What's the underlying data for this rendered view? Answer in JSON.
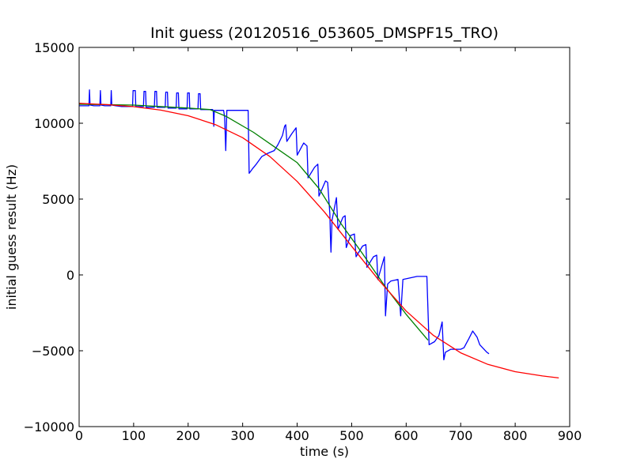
{
  "chart_data": {
    "type": "line",
    "title": "Init guess (20120516_053605_DMSPF15_TRO)",
    "xlabel": "time (s)",
    "ylabel": "initial guess result (Hz)",
    "xlim": [
      0,
      900
    ],
    "ylim": [
      -10000,
      15000
    ],
    "x_ticks": [
      0,
      100,
      200,
      300,
      400,
      500,
      600,
      700,
      800,
      900
    ],
    "y_ticks": [
      -10000,
      -5000,
      0,
      5000,
      10000,
      15000
    ],
    "x_tick_labels": [
      "0",
      "100",
      "200",
      "300",
      "400",
      "500",
      "600",
      "700",
      "800",
      "900"
    ],
    "y_tick_labels": [
      "−10000",
      "−5000",
      "0",
      "5000",
      "10000",
      "15000"
    ],
    "grid": false,
    "legend": "none",
    "series": [
      {
        "color": "#0000ff",
        "points": [
          [
            0,
            11150
          ],
          [
            18,
            11150
          ],
          [
            19,
            12200
          ],
          [
            20,
            11200
          ],
          [
            27,
            11150
          ],
          [
            38,
            11150
          ],
          [
            39,
            12150
          ],
          [
            40,
            11200
          ],
          [
            47,
            11150
          ],
          [
            58,
            11150
          ],
          [
            59,
            12150
          ],
          [
            60,
            11200
          ],
          [
            67,
            11150
          ],
          [
            78,
            11100
          ],
          [
            98,
            11100
          ],
          [
            99,
            12150
          ],
          [
            103,
            12150
          ],
          [
            104,
            11100
          ],
          [
            118,
            11100
          ],
          [
            119,
            12100
          ],
          [
            122,
            12100
          ],
          [
            123,
            11050
          ],
          [
            138,
            11050
          ],
          [
            139,
            12100
          ],
          [
            142,
            12100
          ],
          [
            143,
            11050
          ],
          [
            158,
            11050
          ],
          [
            159,
            12050
          ],
          [
            162,
            12050
          ],
          [
            163,
            11000
          ],
          [
            178,
            11000
          ],
          [
            179,
            12000
          ],
          [
            182,
            12000
          ],
          [
            183,
            10950
          ],
          [
            198,
            10950
          ],
          [
            199,
            12000
          ],
          [
            202,
            12000
          ],
          [
            203,
            10950
          ],
          [
            218,
            10950
          ],
          [
            219,
            11950
          ],
          [
            222,
            11950
          ],
          [
            223,
            10900
          ],
          [
            245,
            10900
          ],
          [
            246,
            10800
          ],
          [
            247,
            9800
          ],
          [
            248,
            10850
          ],
          [
            265,
            10850
          ],
          [
            267,
            10400
          ],
          [
            269,
            8200
          ],
          [
            271,
            10850
          ],
          [
            310,
            10850
          ],
          [
            312,
            6700
          ],
          [
            318,
            7000
          ],
          [
            325,
            7300
          ],
          [
            335,
            7800
          ],
          [
            345,
            8000
          ],
          [
            358,
            8200
          ],
          [
            365,
            8600
          ],
          [
            373,
            9200
          ],
          [
            377,
            9800
          ],
          [
            379,
            9900
          ],
          [
            381,
            8800
          ],
          [
            390,
            9300
          ],
          [
            398,
            9700
          ],
          [
            400,
            7900
          ],
          [
            412,
            8700
          ],
          [
            418,
            8500
          ],
          [
            420,
            6400
          ],
          [
            432,
            7100
          ],
          [
            438,
            7300
          ],
          [
            440,
            5200
          ],
          [
            452,
            6200
          ],
          [
            456,
            6100
          ],
          [
            460,
            4000
          ],
          [
            461,
            2500
          ],
          [
            462,
            1500
          ],
          [
            464,
            3600
          ],
          [
            472,
            5100
          ],
          [
            475,
            3000
          ],
          [
            484,
            3800
          ],
          [
            488,
            3900
          ],
          [
            490,
            1800
          ],
          [
            498,
            2600
          ],
          [
            505,
            2700
          ],
          [
            508,
            1200
          ],
          [
            520,
            1900
          ],
          [
            526,
            2000
          ],
          [
            528,
            500
          ],
          [
            540,
            1200
          ],
          [
            546,
            1300
          ],
          [
            548,
            -300
          ],
          [
            560,
            1200
          ],
          [
            562,
            -2700
          ],
          [
            566,
            -600
          ],
          [
            572,
            -400
          ],
          [
            585,
            -300
          ],
          [
            590,
            -2700
          ],
          [
            594,
            -300
          ],
          [
            620,
            -100
          ],
          [
            638,
            -100
          ],
          [
            642,
            -4600
          ],
          [
            652,
            -4400
          ],
          [
            660,
            -4000
          ],
          [
            666,
            -3100
          ],
          [
            669,
            -5600
          ],
          [
            672,
            -5100
          ],
          [
            682,
            -4900
          ],
          [
            700,
            -4900
          ],
          [
            706,
            -4800
          ],
          [
            715,
            -4200
          ],
          [
            722,
            -3700
          ],
          [
            730,
            -4100
          ],
          [
            735,
            -4600
          ],
          [
            748,
            -5100
          ],
          [
            752,
            -5200
          ]
        ]
      },
      {
        "color": "#008000",
        "points": [
          [
            0,
            11250
          ],
          [
            100,
            11200
          ],
          [
            200,
            11000
          ],
          [
            240,
            10900
          ],
          [
            270,
            10450
          ],
          [
            320,
            9400
          ],
          [
            360,
            8400
          ],
          [
            400,
            7400
          ],
          [
            440,
            5700
          ],
          [
            480,
            3400
          ],
          [
            520,
            1400
          ],
          [
            560,
            -700
          ],
          [
            600,
            -2600
          ],
          [
            640,
            -4300
          ]
        ]
      },
      {
        "color": "#ff0000",
        "points": [
          [
            0,
            11310
          ],
          [
            50,
            11228
          ],
          [
            100,
            11096
          ],
          [
            150,
            10865
          ],
          [
            200,
            10496
          ],
          [
            250,
            9913
          ],
          [
            300,
            9046
          ],
          [
            350,
            7802
          ],
          [
            400,
            6162
          ],
          [
            450,
            4149
          ],
          [
            500,
            1893
          ],
          [
            550,
            -354
          ],
          [
            600,
            -2380
          ],
          [
            650,
            -3987
          ],
          [
            700,
            -5134
          ],
          [
            750,
            -5900
          ],
          [
            800,
            -6378
          ],
          [
            850,
            -6662
          ],
          [
            880,
            -6790
          ]
        ]
      }
    ]
  }
}
